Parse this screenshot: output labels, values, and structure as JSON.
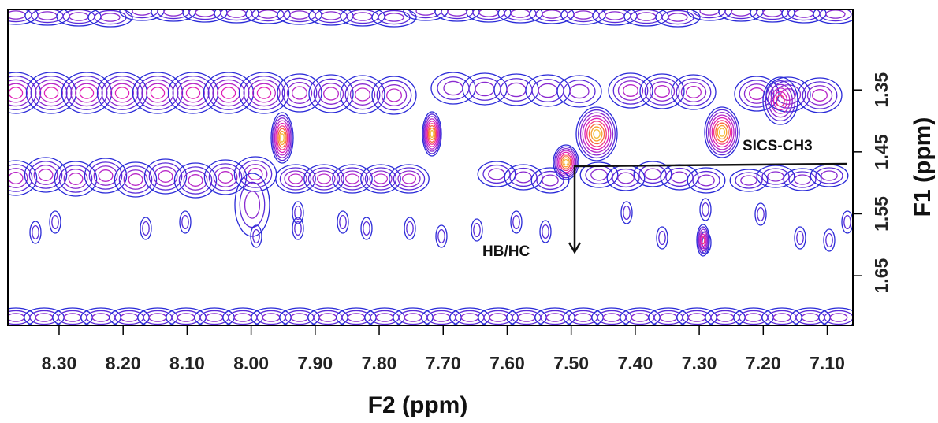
{
  "chart_data": {
    "type": "contour",
    "xlabel": "F2 (ppm)",
    "ylabel": "F1 (ppm)",
    "xlim": [
      8.38,
      7.06
    ],
    "ylim": [
      1.22,
      1.73
    ],
    "xticks": [
      {
        "value": 8.3,
        "label": "8.30"
      },
      {
        "value": 8.2,
        "label": "8.20"
      },
      {
        "value": 8.1,
        "label": "8.10"
      },
      {
        "value": 8.0,
        "label": "8.00"
      },
      {
        "value": 7.9,
        "label": "7.90"
      },
      {
        "value": 7.8,
        "label": "7.80"
      },
      {
        "value": 7.7,
        "label": "7.70"
      },
      {
        "value": 7.6,
        "label": "7.60"
      },
      {
        "value": 7.5,
        "label": "7.50"
      },
      {
        "value": 7.4,
        "label": "7.40"
      },
      {
        "value": 7.3,
        "label": "7.30"
      },
      {
        "value": 7.2,
        "label": "7.20"
      },
      {
        "value": 7.1,
        "label": "7.10"
      }
    ],
    "yticks": [
      1.35,
      1.45,
      1.55,
      1.65
    ],
    "annotations": [
      "SICS-CH3",
      "HB/HC"
    ]
  }
}
